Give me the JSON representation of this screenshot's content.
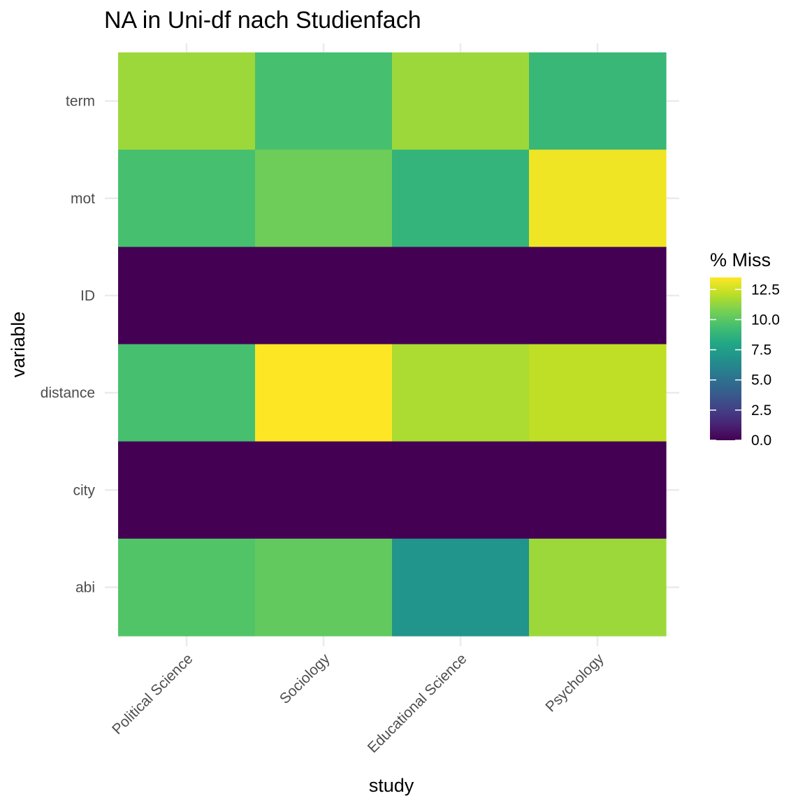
{
  "chart_data": {
    "type": "heatmap",
    "title": "NA in Uni-df nach Studienfach",
    "xlabel": "study",
    "ylabel": "variable",
    "x_categories": [
      "Political Science",
      "Sociology",
      "Educational Science",
      "Psychology"
    ],
    "y_categories": [
      "term",
      "mot",
      "ID",
      "distance",
      "city",
      "abi"
    ],
    "values": [
      [
        11.5,
        9.5,
        11.5,
        9.0
      ],
      [
        9.5,
        10.5,
        8.8,
        13.2
      ],
      [
        0.0,
        0.0,
        0.0,
        0.0
      ],
      [
        9.5,
        13.5,
        11.8,
        12.2
      ],
      [
        0.0,
        0.0,
        0.0,
        0.0
      ],
      [
        9.8,
        10.2,
        7.0,
        11.5
      ]
    ],
    "color_scale": "viridis",
    "legend": {
      "title": "% Miss",
      "ticks": [
        0.0,
        2.5,
        5.0,
        7.5,
        10.0,
        12.5
      ],
      "tick_labels": [
        "0.0",
        "2.5",
        "5.0",
        "7.5",
        "10.0",
        "12.5"
      ],
      "min": 0.0,
      "max": 13.5,
      "placement": "right"
    },
    "grid": true
  }
}
